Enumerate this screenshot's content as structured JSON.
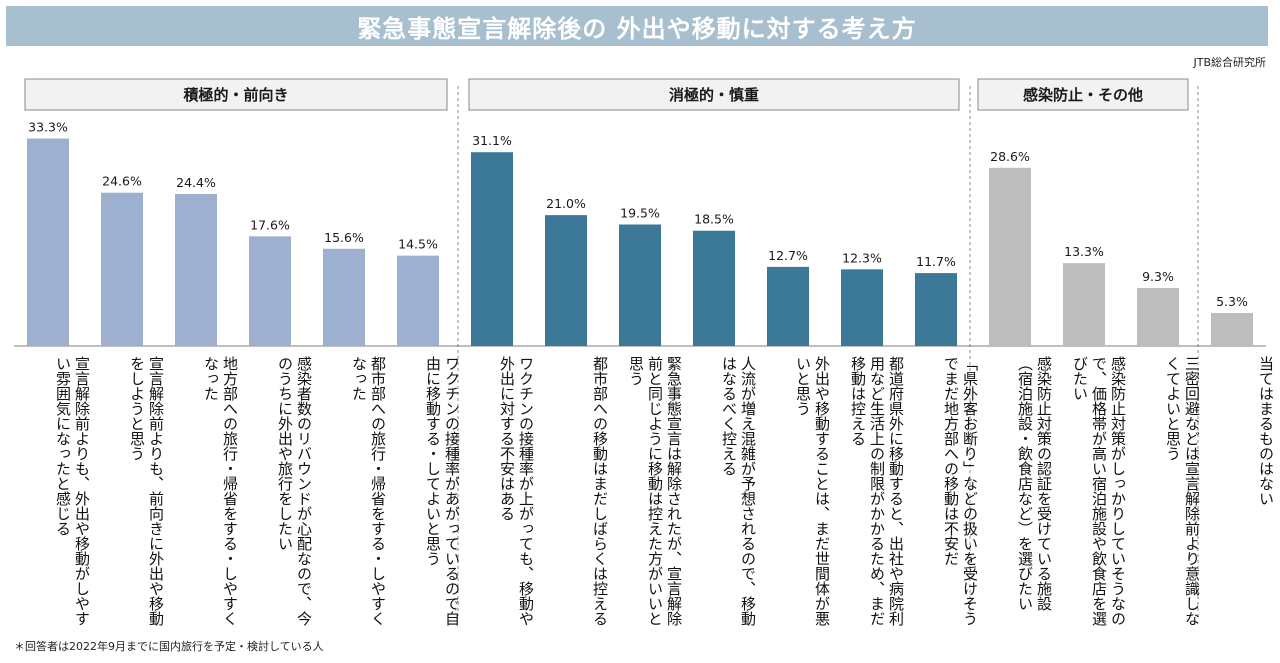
{
  "title": "緊急事態宣言解除後の 外出や移動に対する考え方",
  "source": "JTB総合研究所",
  "footnote": "＊回答者は2022年9月までに国内旅行を予定・検討している人",
  "colors": {
    "banner": "#a7bfce",
    "group1": "#9db0cf",
    "group2": "#3c7897",
    "group3": "#bdbdbd",
    "group4": "#bdbdbd"
  },
  "chart_data": {
    "type": "bar",
    "unit": "%",
    "ylim": [
      0,
      35
    ],
    "groups": [
      {
        "name": "積極的・前向き",
        "color": "#9db0cf",
        "range": [
          0,
          5
        ]
      },
      {
        "name": "消極的・慎重",
        "color": "#3c7897",
        "range": [
          6,
          12
        ]
      },
      {
        "name": "感染防止・その他",
        "color": "#bdbdbd",
        "range": [
          13,
          15
        ]
      },
      {
        "name": "",
        "color": "#bdbdbd",
        "range": [
          16,
          16
        ]
      }
    ],
    "categories": [
      "宣言解除前よりも、外出や移動がしやすい雰囲気になったと感じる",
      "宣言解除前よりも、前向きに外出や移動をしようと思う",
      "地方部への旅行・帰省をする・しやすくなった",
      "感染者数のリバウンドが心配なので、今のうちに外出や旅行をしたい",
      "都市部への旅行・帰省をする・しやすくなった",
      "ワクチンの接種率があがっているので自由に移動する・してよいと思う",
      "ワクチンの接種率が上がっても、移動や外出に対する不安はある",
      "都市部への移動はまだしばらくは控える",
      "緊急事態宣言は解除されたが、宣言解除前と同じように移動は控えた方がいいと思う",
      "人流が増え混雑が予想されるので、移動はなるべく控える",
      "外出や移動することは、まだ世間体が悪いと思う",
      "都道府県外に移動すると、出社や病院利用など生活上の制限がかかるため、まだ移動は控える",
      "「県外客お断り」などの扱いを受けそうでまだ地方部への移動は不安だ",
      "感染防止対策の認証を受けている施設（宿泊施設・飲食店など）を選びたい",
      "感染防止対策がしっかりしていそうなので、価格帯が高い宿泊施設や飲食店を選びたい",
      "三密回避などは宣言解除前より意識しなくてよいと思う",
      "当てはまるものはない"
    ],
    "values": [
      33.3,
      24.6,
      24.4,
      17.6,
      15.6,
      14.5,
      31.1,
      21.0,
      19.5,
      18.5,
      12.7,
      12.3,
      11.7,
      28.6,
      13.3,
      9.3,
      5.3
    ],
    "value_labels": [
      "33.3%",
      "24.6%",
      "24.4%",
      "17.6%",
      "15.6%",
      "14.5%",
      "31.1%",
      "21.0%",
      "19.5%",
      "18.5%",
      "12.7%",
      "12.3%",
      "11.7%",
      "28.6%",
      "13.3%",
      "9.3%",
      "5.3%"
    ]
  }
}
